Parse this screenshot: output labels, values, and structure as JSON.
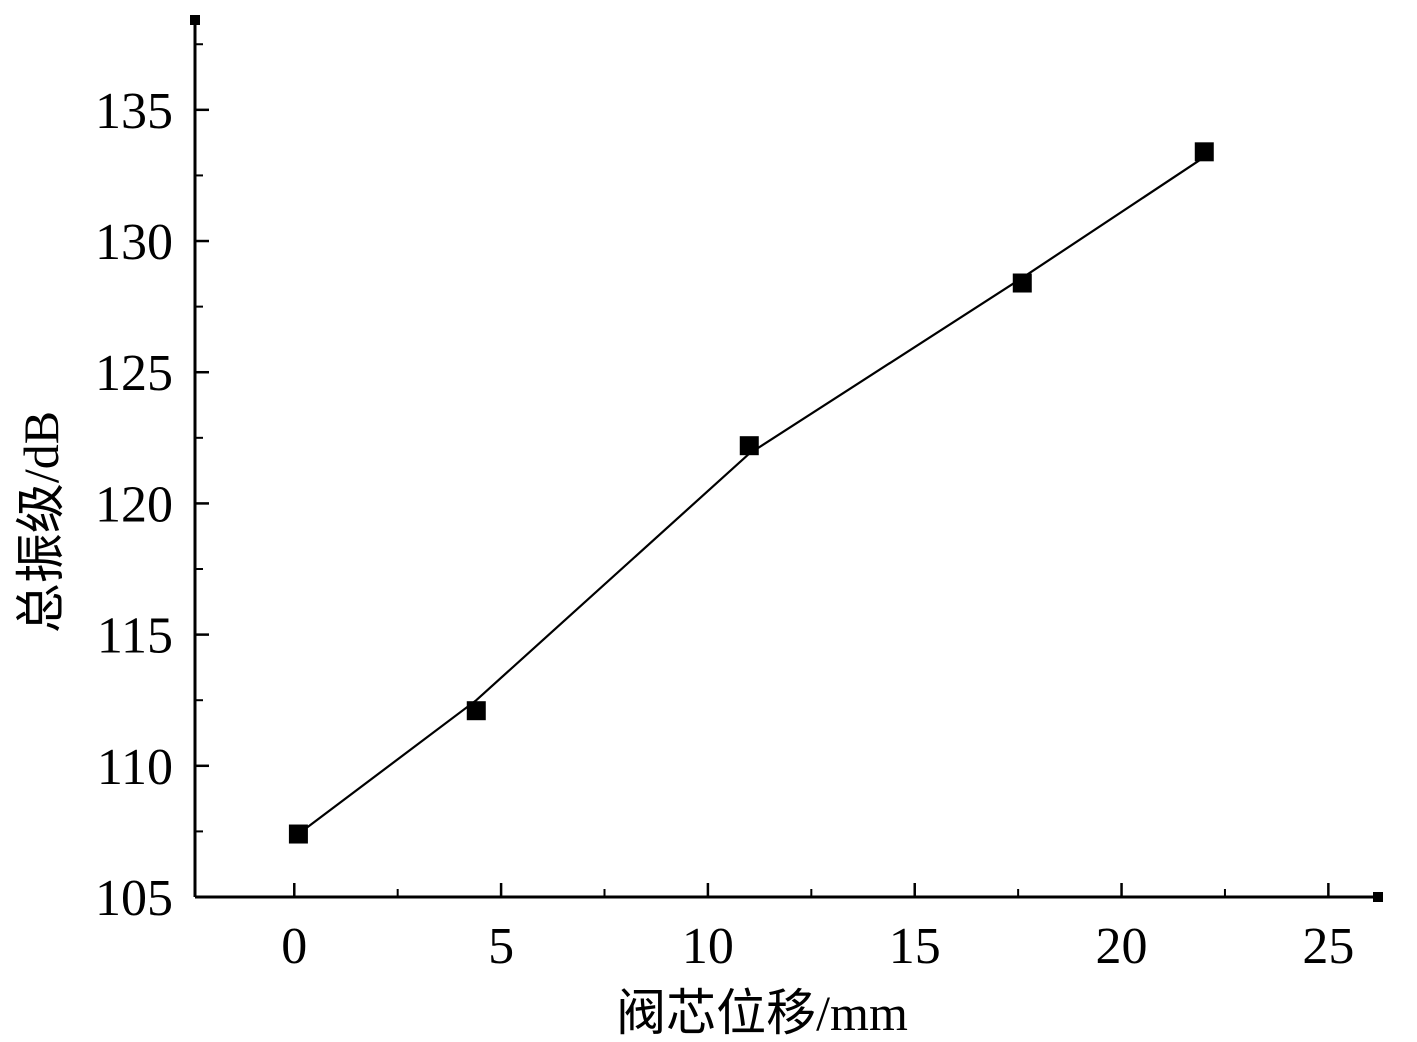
{
  "chart_data": {
    "type": "scatter",
    "title": "",
    "xlabel": "阀芯位移/mm",
    "ylabel": "总振级/dB",
    "xlim": [
      -2.4,
      26.2
    ],
    "ylim": [
      105,
      138.5
    ],
    "x_ticks": [
      0,
      5,
      10,
      15,
      20,
      25
    ],
    "x_tick_labels": [
      "0",
      "5",
      "10",
      "15",
      "20",
      "25"
    ],
    "y_ticks": [
      105,
      110,
      115,
      120,
      125,
      130,
      135
    ],
    "y_tick_labels": [
      "105",
      "110",
      "115",
      "120",
      "125",
      "130",
      "135"
    ],
    "grid": false,
    "legend": "none",
    "series": [
      {
        "marker": "square",
        "color": "#000000",
        "points": [
          {
            "x": 0.1,
            "y": 107.4
          },
          {
            "x": 4.4,
            "y": 112.1
          },
          {
            "x": 11.0,
            "y": 122.2
          },
          {
            "x": 17.6,
            "y": 128.4
          },
          {
            "x": 22.0,
            "y": 133.4
          }
        ]
      }
    ],
    "fit_line": {
      "type": "line",
      "color": "#000000",
      "points": [
        {
          "x": 0.1,
          "y": 107.4
        },
        {
          "x": 4.4,
          "y": 112.5
        },
        {
          "x": 11.0,
          "y": 121.9
        },
        {
          "x": 17.6,
          "y": 128.6
        },
        {
          "x": 22.0,
          "y": 133.2
        }
      ]
    }
  }
}
